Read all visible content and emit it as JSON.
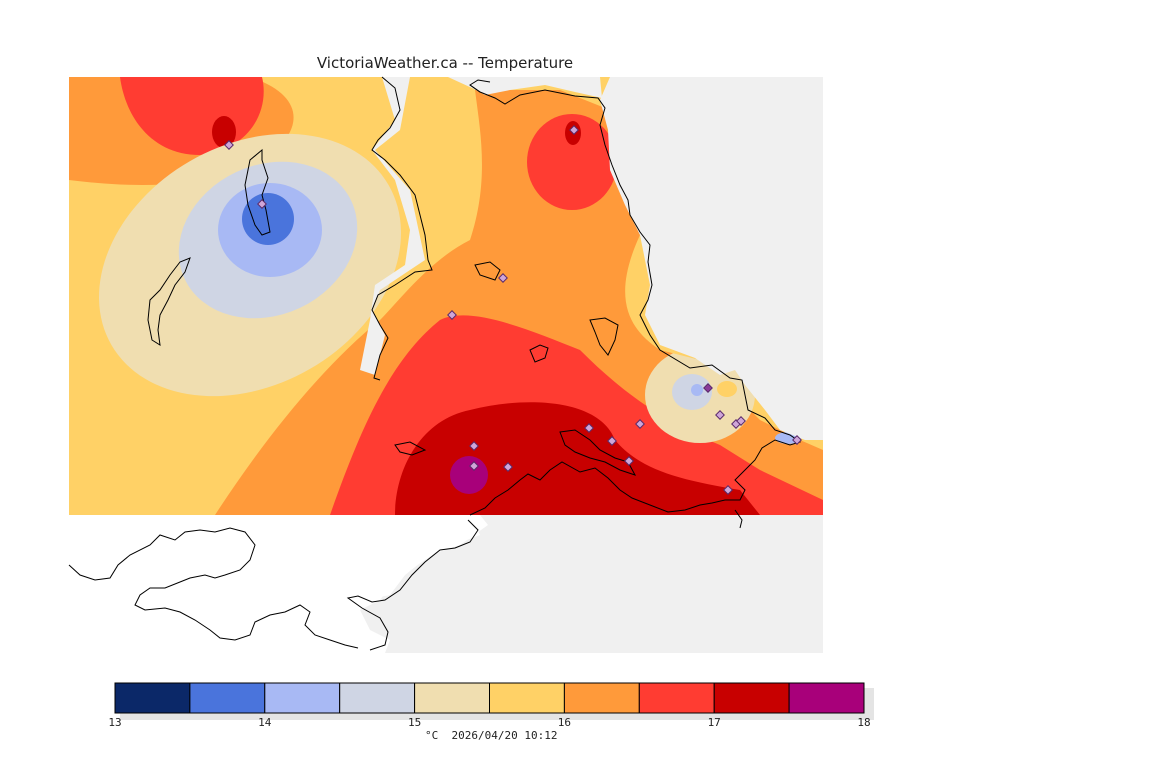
{
  "title": "VictoriaWeather.ca -- Temperature",
  "legend": {
    "bins": [
      {
        "from": 13.0,
        "to": 13.5,
        "color": "#0b2868"
      },
      {
        "from": 13.5,
        "to": 14.0,
        "color": "#4a74dc"
      },
      {
        "from": 14.0,
        "to": 14.5,
        "color": "#a8b9f4"
      },
      {
        "from": 14.5,
        "to": 15.0,
        "color": "#cfd5e4"
      },
      {
        "from": 15.0,
        "to": 15.5,
        "color": "#f0deb0"
      },
      {
        "from": 15.5,
        "to": 16.0,
        "color": "#ffd166"
      },
      {
        "from": 16.0,
        "to": 16.5,
        "color": "#ff9a3a"
      },
      {
        "from": 16.5,
        "to": 17.0,
        "color": "#ff3c32"
      },
      {
        "from": 17.0,
        "to": 17.5,
        "color": "#c80000"
      },
      {
        "from": 17.5,
        "to": 18.0,
        "color": "#a8007a"
      }
    ],
    "tick_labels": [
      "13",
      "14",
      "15",
      "16",
      "17",
      "18"
    ]
  },
  "timestamp": "°C  2026/04/20 10:12",
  "colors": {
    "land_nodata": "#f0f0f0",
    "coastline": "#000000",
    "station_marker": "#8a4fb0"
  }
}
